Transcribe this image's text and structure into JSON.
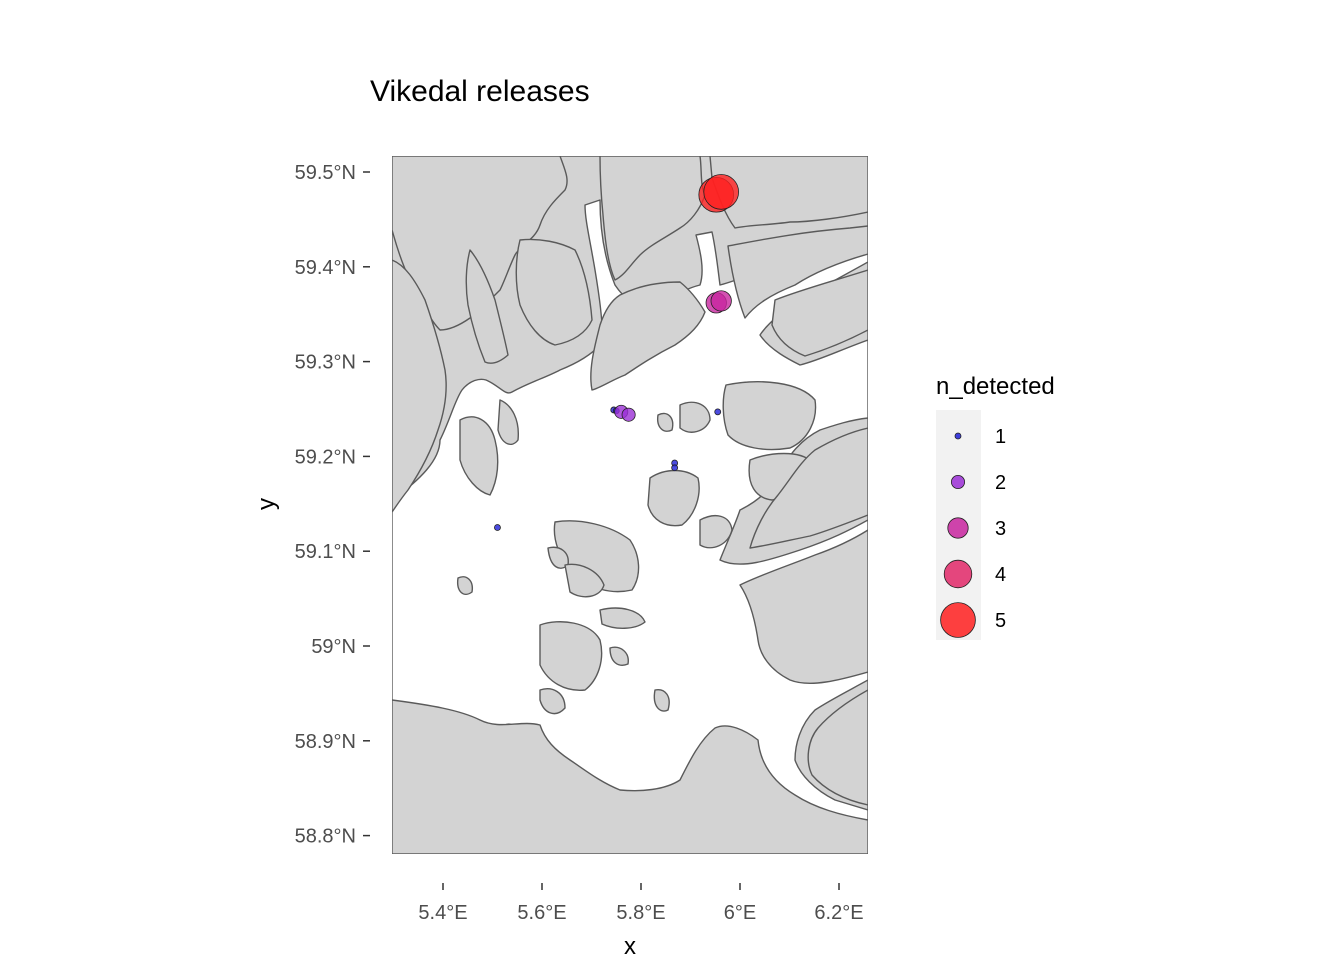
{
  "title": "Vikedal releases",
  "chart_data": {
    "type": "scatter",
    "title": "Vikedal releases",
    "xlabel": "x",
    "ylabel": "y",
    "xlim": [
      5.29,
      6.25
    ],
    "ylim": [
      58.77,
      59.52
    ],
    "x_ticks": [
      {
        "value": 5.4,
        "label": "5.4°E"
      },
      {
        "value": 5.6,
        "label": "5.6°E"
      },
      {
        "value": 5.8,
        "label": "5.8°E"
      },
      {
        "value": 6.0,
        "label": "6°E"
      },
      {
        "value": 6.2,
        "label": "6.2°E"
      }
    ],
    "y_ticks": [
      {
        "value": 59.5,
        "label": "59.5°N"
      },
      {
        "value": 59.4,
        "label": "59.4°N"
      },
      {
        "value": 59.3,
        "label": "59.3°N"
      },
      {
        "value": 59.2,
        "label": "59.2°N"
      },
      {
        "value": 59.1,
        "label": "59.1°N"
      },
      {
        "value": 59.0,
        "label": "59°N"
      },
      {
        "value": 58.9,
        "label": "58.9°N"
      },
      {
        "value": 58.8,
        "label": "58.8°N"
      }
    ],
    "points": [
      {
        "lon": 5.51,
        "lat": 59.125,
        "n_detected": 1
      },
      {
        "lon": 5.745,
        "lat": 59.249,
        "n_detected": 1
      },
      {
        "lon": 5.75,
        "lat": 59.248,
        "n_detected": 1
      },
      {
        "lon": 5.868,
        "lat": 59.193,
        "n_detected": 1
      },
      {
        "lon": 5.868,
        "lat": 59.188,
        "n_detected": 1
      },
      {
        "lon": 5.955,
        "lat": 59.247,
        "n_detected": 1
      },
      {
        "lon": 5.76,
        "lat": 59.247,
        "n_detected": 2
      },
      {
        "lon": 5.775,
        "lat": 59.244,
        "n_detected": 2
      },
      {
        "lon": 5.952,
        "lat": 59.362,
        "n_detected": 3
      },
      {
        "lon": 5.962,
        "lat": 59.364,
        "n_detected": 3
      },
      {
        "lon": 5.952,
        "lat": 59.476,
        "n_detected": 5
      },
      {
        "lon": 5.962,
        "lat": 59.479,
        "n_detected": 5
      }
    ],
    "legend": {
      "title": "n_detected",
      "position": "right",
      "entries": [
        {
          "label": "1",
          "value": 1,
          "color": "#1f1fd8"
        },
        {
          "label": "2",
          "value": 2,
          "color": "#9b2fd6"
        },
        {
          "label": "3",
          "value": 3,
          "color": "#c8259f"
        },
        {
          "label": "4",
          "value": 4,
          "color": "#e22868"
        },
        {
          "label": "5",
          "value": 5,
          "color": "#ff2020"
        }
      ]
    },
    "land_color": "#d3d3d3",
    "background": "#ffffff",
    "grid": false
  }
}
